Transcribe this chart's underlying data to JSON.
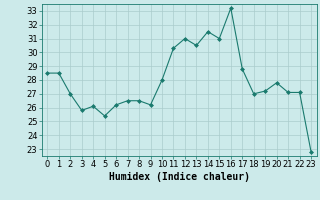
{
  "x": [
    0,
    1,
    2,
    3,
    4,
    5,
    6,
    7,
    8,
    9,
    10,
    11,
    12,
    13,
    14,
    15,
    16,
    17,
    18,
    19,
    20,
    21,
    22,
    23
  ],
  "y": [
    28.5,
    28.5,
    27.0,
    25.8,
    26.1,
    25.4,
    26.2,
    26.5,
    26.5,
    26.2,
    28.0,
    30.3,
    31.0,
    30.5,
    31.5,
    31.0,
    33.2,
    28.8,
    27.0,
    27.2,
    27.8,
    27.1,
    27.1,
    22.8
  ],
  "line_color": "#1a7a6e",
  "marker": "D",
  "marker_size": 2,
  "bg_color": "#cceaea",
  "grid_color": "#aacccc",
  "xlabel": "Humidex (Indice chaleur)",
  "xlabel_fontsize": 7,
  "tick_fontsize": 6,
  "ylim": [
    22.5,
    33.5
  ],
  "yticks": [
    23,
    24,
    25,
    26,
    27,
    28,
    29,
    30,
    31,
    32,
    33
  ],
  "xlim": [
    -0.5,
    23.5
  ],
  "xticks": [
    0,
    1,
    2,
    3,
    4,
    5,
    6,
    7,
    8,
    9,
    10,
    11,
    12,
    13,
    14,
    15,
    16,
    17,
    18,
    19,
    20,
    21,
    22,
    23
  ]
}
